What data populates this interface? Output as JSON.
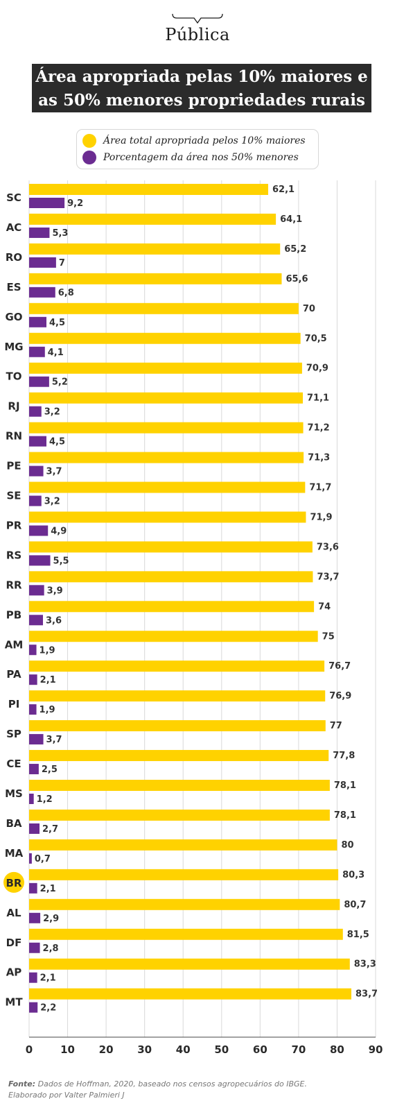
{
  "brand": {
    "name": "Pública"
  },
  "title_line1": "Área apropriada pelas 10% maiores e",
  "title_line2": "as 50% menores propriedades rurais",
  "colors": {
    "yellow": "#FFD200",
    "purple": "#6B2C91",
    "title_bg": "#2b2b2b",
    "highlight": "#FFD200"
  },
  "legend": {
    "yellow_label": "Área total apropriada pelos 10% maiores",
    "purple_label": "Porcentagem da área nos 50% menores"
  },
  "footer": {
    "source_label": "Fonte:",
    "source_text": " Dados de Hoffman, 2020, baseado nos censos agropecuários do IBGE.",
    "credit": "Elaborado por Valter Palmieri J"
  },
  "chart_data": {
    "type": "bar",
    "orientation": "horizontal",
    "xlim": [
      0,
      90
    ],
    "xticks": [
      0,
      10,
      20,
      30,
      40,
      50,
      60,
      70,
      80,
      90
    ],
    "grid": true,
    "legend_position": "top",
    "highlighted_category": "BR",
    "categories": [
      "SC",
      "AC",
      "RO",
      "ES",
      "GO",
      "MG",
      "TO",
      "RJ",
      "RN",
      "PE",
      "SE",
      "PR",
      "RS",
      "RR",
      "PB",
      "AM",
      "PA",
      "PI",
      "SP",
      "CE",
      "MS",
      "BA",
      "MA",
      "BR",
      "AL",
      "DF",
      "AP",
      "MT"
    ],
    "series": [
      {
        "name": "Área total apropriada pelos 10% maiores",
        "color": "#FFD200",
        "values": [
          62.1,
          64.1,
          65.2,
          65.6,
          70,
          70.5,
          70.9,
          71.1,
          71.2,
          71.3,
          71.7,
          71.9,
          73.6,
          73.7,
          74,
          75,
          76.7,
          76.9,
          77,
          77.8,
          78.1,
          78.1,
          80,
          80.3,
          80.7,
          81.5,
          83.3,
          83.7
        ],
        "labels": [
          "62,1",
          "64,1",
          "65,2",
          "65,6",
          "70",
          "70,5",
          "70,9",
          "71,1",
          "71,2",
          "71,3",
          "71,7",
          "71,9",
          "73,6",
          "73,7",
          "74",
          "75",
          "76,7",
          "76,9",
          "77",
          "77,8",
          "78,1",
          "78,1",
          "80",
          "80,3",
          "80,7",
          "81,5",
          "83,3",
          "83,7"
        ]
      },
      {
        "name": "Porcentagem da área nos 50% menores",
        "color": "#6B2C91",
        "values": [
          9.2,
          5.3,
          7,
          6.8,
          4.5,
          4.1,
          5.2,
          3.2,
          4.5,
          3.7,
          3.2,
          4.9,
          5.5,
          3.9,
          3.6,
          1.9,
          2.1,
          1.9,
          3.7,
          2.5,
          1.2,
          2.7,
          0.7,
          2.1,
          2.9,
          2.8,
          2.1,
          2.2
        ],
        "labels": [
          "9,2",
          "5,3",
          "7",
          "6,8",
          "4,5",
          "4,1",
          "5,2",
          "3,2",
          "4,5",
          "3,7",
          "3,2",
          "4,9",
          "5,5",
          "3,9",
          "3,6",
          "1,9",
          "2,1",
          "1,9",
          "3,7",
          "2,5",
          "1,2",
          "2,7",
          "0,7",
          "2,1",
          "2,9",
          "2,8",
          "2,1",
          "2,2"
        ]
      }
    ]
  }
}
